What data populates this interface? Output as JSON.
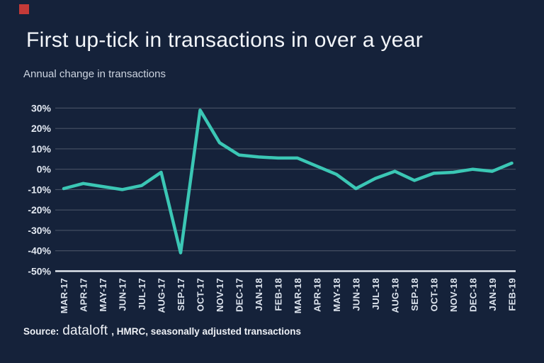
{
  "brand": {
    "mark_color": "#c43a38"
  },
  "title": "First up-tick in transactions in over a year",
  "subtitle": "Annual change in transactions",
  "source": {
    "prefix": "Source:",
    "brand": "dataloft",
    "rest": ", HMRC, seasonally adjusted transactions"
  },
  "chart_data": {
    "type": "line",
    "title": "First up-tick in transactions in over a year",
    "xlabel": "",
    "ylabel": "Annual change in transactions",
    "categories": [
      "MAR-17",
      "APR-17",
      "MAY-17",
      "JUN-17",
      "JUL-17",
      "AUG-17",
      "SEP-17",
      "OCT-17",
      "NOV-17",
      "DEC-17",
      "JAN-18",
      "FEB-18",
      "MAR-18",
      "APR-18",
      "MAY-18",
      "JUN-18",
      "JUL-18",
      "AUG-18",
      "SEP-18",
      "OCT-18",
      "NOV-18",
      "DEC-18",
      "JAN-19",
      "FEB-19"
    ],
    "series": [
      {
        "name": "Annual change in transactions (%)",
        "values": [
          -9.5,
          -7,
          -8.5,
          -10,
          -8,
          -1.5,
          -41,
          29,
          13,
          7,
          6,
          5.5,
          5.5,
          1.5,
          -2.5,
          -9.5,
          -4.5,
          -1,
          -5.5,
          -2,
          -1.5,
          0,
          -1,
          3
        ]
      }
    ],
    "ylim": [
      -50,
      30
    ],
    "yticks": [
      30,
      20,
      10,
      0,
      -10,
      -20,
      -30,
      -40,
      -50
    ],
    "ytick_suffix": "%",
    "grid": true,
    "legend": false,
    "line_color": "#3bc7b5",
    "background_color": "#15223a",
    "gridline_color": "rgba(255,255,255,0.22)",
    "axis_line_color": "#e9eef5",
    "label_color": "#e3e9f2"
  }
}
